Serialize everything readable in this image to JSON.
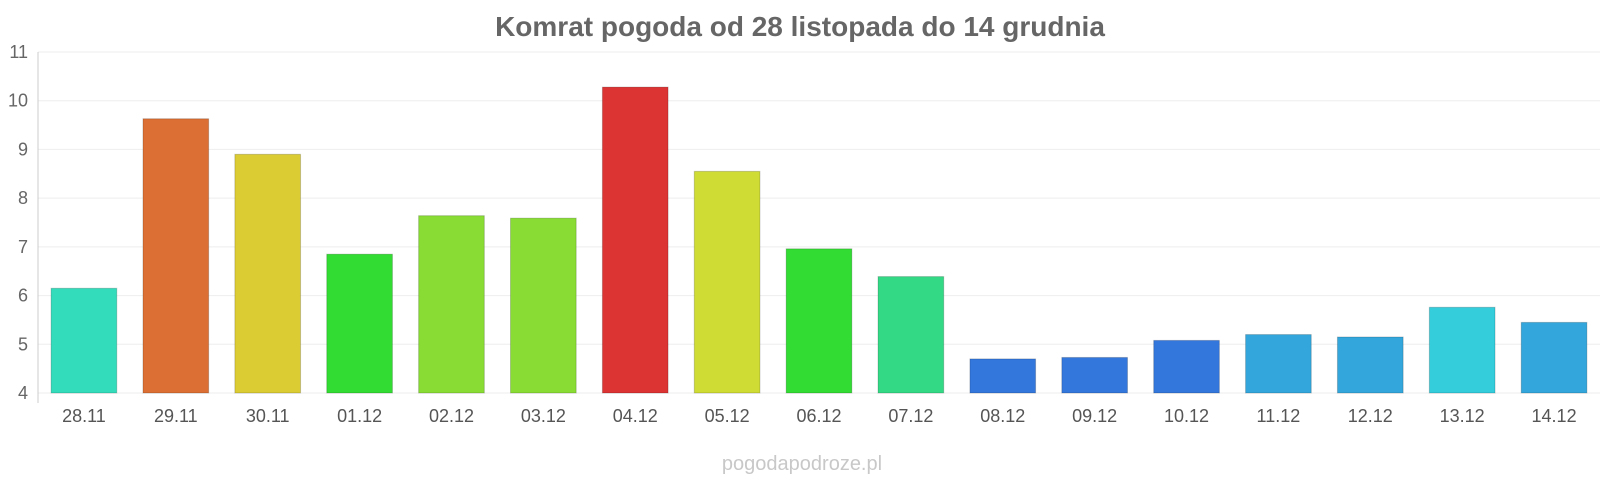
{
  "chart_data": {
    "type": "bar",
    "title": "Komrat pogoda od 28 listopada do 14 grudnia",
    "xlabel": "",
    "ylabel": "",
    "ylim": [
      4,
      11
    ],
    "yticks": [
      4,
      5,
      6,
      7,
      8,
      9,
      10,
      11
    ],
    "grid": true,
    "categories": [
      "28.11",
      "29.11",
      "30.11",
      "01.12",
      "02.12",
      "03.12",
      "04.12",
      "05.12",
      "06.12",
      "07.12",
      "08.12",
      "09.12",
      "10.12",
      "11.12",
      "12.12",
      "13.12",
      "14.12"
    ],
    "values": [
      6.15,
      9.63,
      8.9,
      6.85,
      7.64,
      7.59,
      10.28,
      8.55,
      6.96,
      6.39,
      4.7,
      4.73,
      5.08,
      5.2,
      5.15,
      5.76,
      5.45
    ],
    "colors": [
      "#33dcbb",
      "#dc6f33",
      "#dccc33",
      "#33dc33",
      "#88dc33",
      "#88dc33",
      "#dc3333",
      "#cfdc33",
      "#33dc33",
      "#33d985",
      "#3377dc",
      "#3377dc",
      "#3377dc",
      "#33a7dc",
      "#33a7dc",
      "#33cddc",
      "#33a7dc"
    ]
  },
  "watermark": "pogodapodroze.pl"
}
